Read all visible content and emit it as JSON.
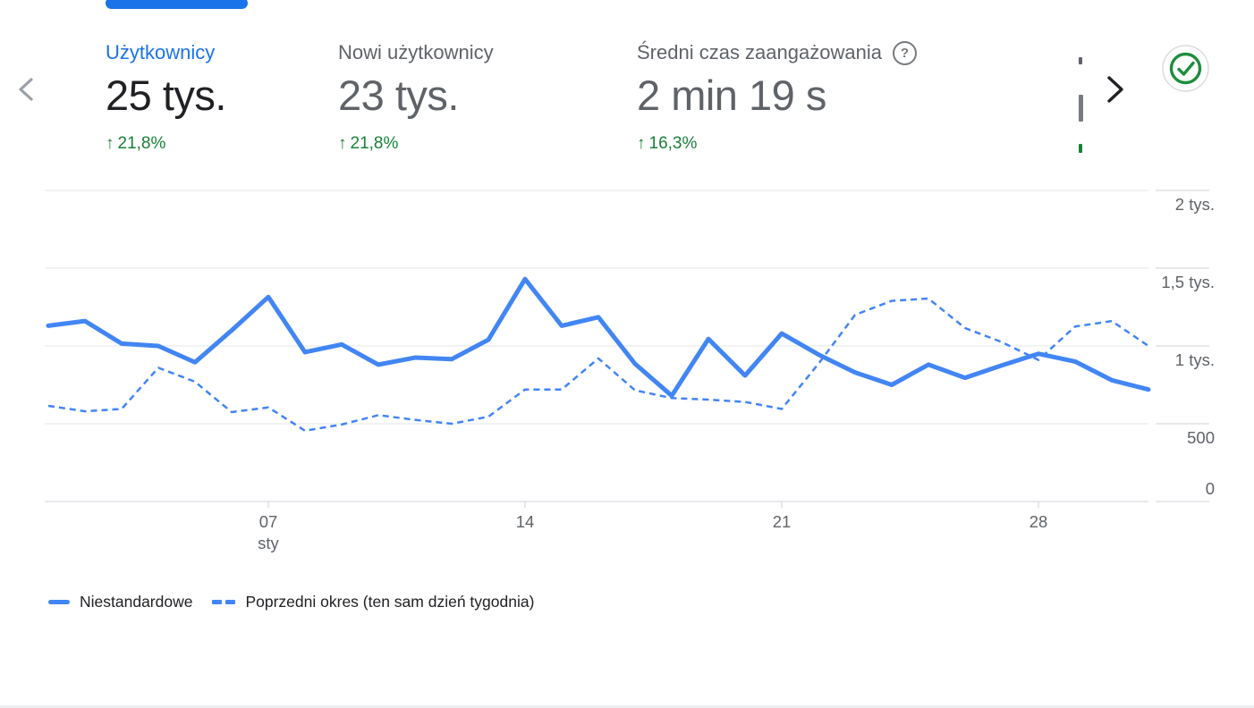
{
  "icons": {
    "prev": "chevron-left",
    "next": "chevron-right",
    "help": "question-mark-circle",
    "data_quality": "check-in-circle"
  },
  "metrics": {
    "items": [
      {
        "label": "Użytkownicy",
        "value": "25 tys.",
        "delta_arrow": "↑",
        "delta": "21,8%",
        "selected": true
      },
      {
        "label": "Nowi użytkownicy",
        "value": "23 tys.",
        "delta_arrow": "↑",
        "delta": "21,8%",
        "selected": false
      },
      {
        "label": "Średni czas zaangażowania",
        "value": "2 min 19 s",
        "delta_arrow": "↑",
        "delta": "16,3%",
        "selected": false,
        "help_icon": "?"
      }
    ]
  },
  "chart_data": {
    "type": "line",
    "title": "",
    "x": [
      1,
      2,
      3,
      4,
      5,
      6,
      7,
      8,
      9,
      10,
      11,
      12,
      13,
      14,
      15,
      16,
      17,
      18,
      19,
      20,
      21,
      22,
      23,
      24,
      25,
      26,
      27,
      28,
      29,
      30,
      31
    ],
    "x_axis": {
      "tick_days": [
        7,
        14,
        21,
        28
      ],
      "tick_labels": [
        "07",
        "14",
        "21",
        "28"
      ],
      "month_label": "sty"
    },
    "y_axis": {
      "position": "right",
      "range": [
        0,
        2000
      ],
      "ticks": [
        {
          "value": 0,
          "label": "0"
        },
        {
          "value": 500,
          "label": "500"
        },
        {
          "value": 1000,
          "label": "1 tys."
        },
        {
          "value": 1500,
          "label": "1,5 tys."
        },
        {
          "value": 2000,
          "label": "2 tys."
        }
      ]
    },
    "grid": "horizontal",
    "legend_position": "bottom",
    "series": [
      {
        "name": "Niestandardowe",
        "style": "solid",
        "color": "#4285f4",
        "values": [
          1130,
          1160,
          1015,
          1000,
          895,
          1100,
          1315,
          960,
          1010,
          880,
          925,
          915,
          1040,
          1430,
          1130,
          1185,
          885,
          680,
          1045,
          810,
          1080,
          945,
          830,
          750,
          880,
          795,
          875,
          950,
          900,
          780,
          720
        ]
      },
      {
        "name": "Poprzedni okres (ten sam dzień tygodnia)",
        "style": "dashed",
        "color": "#4285f4",
        "values": [
          615,
          580,
          595,
          860,
          770,
          575,
          605,
          455,
          495,
          555,
          525,
          500,
          545,
          720,
          720,
          920,
          715,
          665,
          655,
          640,
          595,
          885,
          1200,
          1290,
          1305,
          1115,
          1025,
          910,
          1125,
          1160,
          1000
        ]
      }
    ]
  },
  "colors": {
    "accent_blue": "#1a73e8",
    "line_blue": "#4285f4",
    "positive_green": "#188038",
    "text_dark": "#202124",
    "text_gray": "#5f6368",
    "gridline": "#e8eaed"
  }
}
